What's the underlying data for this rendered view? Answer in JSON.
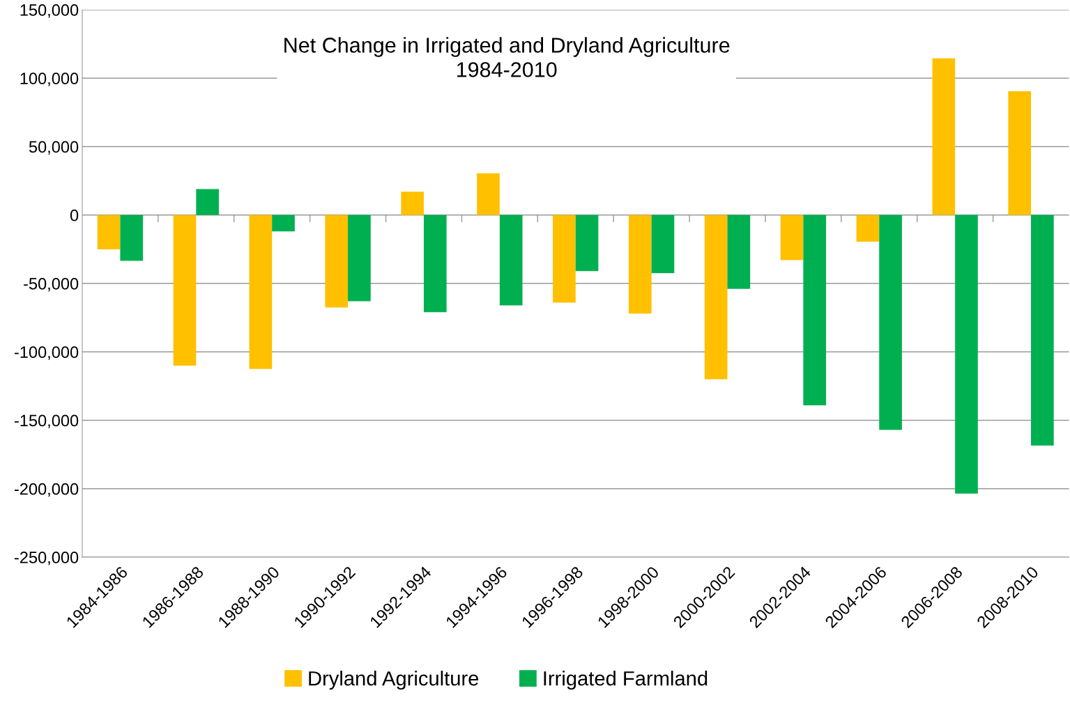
{
  "chart_data": {
    "type": "bar",
    "title": "Net Change in Irrigated and Dryland Agriculture\n1984-2010",
    "categories": [
      "1984-1986",
      "1986-1988",
      "1988-1990",
      "1990-1992",
      "1992-1994",
      "1994-1996",
      "1996-1998",
      "1998-2000",
      "2000-2002",
      "2002-2004",
      "2004-2006",
      "2006-2008",
      "2008-2010"
    ],
    "series": [
      {
        "name": "Dryland Agriculture",
        "color": "#ffc000",
        "values": [
          -25000,
          -110000,
          -112500,
          -67500,
          17000,
          30500,
          -64000,
          -72000,
          -120000,
          -33000,
          -19500,
          114500,
          90500
        ]
      },
      {
        "name": "Irrigated Farmland",
        "color": "#00b050",
        "values": [
          -33500,
          19000,
          -12000,
          -63000,
          -71000,
          -66000,
          -41000,
          -42500,
          -54000,
          -139000,
          -157000,
          -203500,
          -168500
        ]
      }
    ],
    "ylim": [
      -250000,
      150000
    ],
    "yticks": [
      {
        "value": -250000,
        "label": "-250,000"
      },
      {
        "value": -200000,
        "label": "-200,000"
      },
      {
        "value": -150000,
        "label": "-150,000"
      },
      {
        "value": -100000,
        "label": "-100,000"
      },
      {
        "value": -50000,
        "label": "-50,000"
      },
      {
        "value": 0,
        "label": "0"
      },
      {
        "value": 50000,
        "label": "50,000"
      },
      {
        "value": 100000,
        "label": "100,000"
      },
      {
        "value": 150000,
        "label": "150,000"
      }
    ],
    "grid": "y",
    "legend": "bottom"
  }
}
